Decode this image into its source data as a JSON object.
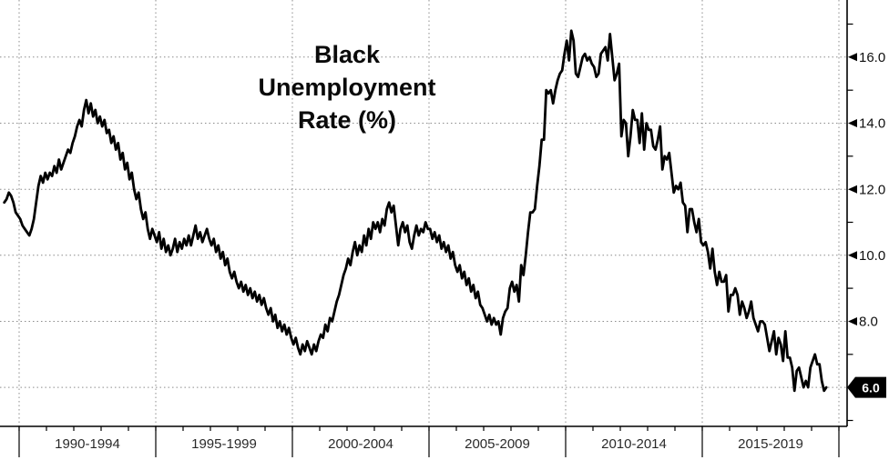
{
  "chart_data": {
    "type": "line",
    "title": "Black\nUnemployment\nRate (%)",
    "series_name": "Black Unemployment Rate (%)",
    "unit": "%",
    "frequency": "monthly",
    "x_start_decimal_year": 1989.4583,
    "xlim": [
      1989.3,
      2020.3
    ],
    "ylim": [
      4.82,
      17.73
    ],
    "grid": "dotted",
    "legend": "none",
    "line_color": "#000000",
    "background_color": "#ffffff",
    "last_value": 6.0,
    "last_value_label": "6.0",
    "badge_bg": "#000000",
    "badge_text_color": "#ffffff",
    "ygrid_values": [
      6,
      8,
      10,
      12,
      14,
      16
    ],
    "yticks_minor": [
      5,
      7,
      9,
      11,
      13,
      15,
      17
    ],
    "yticks_major": [
      {
        "value": 16,
        "label": "16.0"
      },
      {
        "value": 14,
        "label": "14.0"
      },
      {
        "value": 12,
        "label": "12.0"
      },
      {
        "value": 10,
        "label": "10.0"
      },
      {
        "value": 8,
        "label": "8.0"
      }
    ],
    "x_gridline_years": [
      1990,
      1995,
      2000,
      2005,
      2010,
      2015,
      2020
    ],
    "x_year_tick_range": [
      1990,
      2020
    ],
    "x_period_labels": [
      {
        "label": "1990-1994",
        "center_year": 1992.5
      },
      {
        "label": "1995-1999",
        "center_year": 1997.5
      },
      {
        "label": "2000-2004",
        "center_year": 2002.5
      },
      {
        "label": "2005-2009",
        "center_year": 2007.5
      },
      {
        "label": "2010-2014",
        "center_year": 2012.5
      },
      {
        "label": "2015-2019",
        "center_year": 2017.5
      }
    ],
    "values": [
      11.6,
      11.7,
      11.9,
      11.8,
      11.6,
      11.3,
      11.2,
      11.1,
      10.9,
      10.8,
      10.7,
      10.6,
      10.8,
      11.1,
      11.6,
      12.1,
      12.4,
      12.2,
      12.5,
      12.3,
      12.5,
      12.4,
      12.7,
      12.5,
      12.9,
      12.6,
      12.8,
      13.0,
      13.2,
      13.1,
      13.4,
      13.6,
      13.9,
      14.1,
      13.9,
      14.4,
      14.7,
      14.3,
      14.6,
      14.2,
      14.4,
      14.0,
      14.2,
      13.9,
      14.1,
      13.7,
      13.8,
      13.4,
      13.6,
      13.2,
      13.4,
      12.9,
      13.1,
      12.6,
      12.8,
      12.3,
      12.5,
      12.0,
      11.7,
      11.9,
      11.4,
      11.1,
      11.3,
      10.8,
      10.5,
      10.8,
      10.6,
      10.4,
      10.7,
      10.2,
      10.5,
      10.1,
      10.3,
      10.0,
      10.2,
      10.5,
      10.1,
      10.4,
      10.2,
      10.5,
      10.3,
      10.6,
      10.3,
      10.6,
      10.9,
      10.5,
      10.7,
      10.4,
      10.6,
      10.8,
      10.5,
      10.3,
      10.5,
      10.1,
      10.3,
      9.9,
      10.1,
      9.7,
      9.9,
      9.5,
      9.3,
      9.5,
      9.2,
      9.0,
      9.2,
      8.9,
      9.1,
      8.8,
      9.0,
      8.7,
      8.9,
      8.6,
      8.8,
      8.5,
      8.7,
      8.4,
      8.2,
      8.4,
      8.0,
      8.2,
      7.8,
      8.0,
      7.7,
      7.9,
      7.6,
      7.8,
      7.5,
      7.3,
      7.5,
      7.2,
      7.0,
      7.3,
      7.1,
      7.4,
      7.2,
      7.0,
      7.3,
      7.1,
      7.4,
      7.6,
      7.5,
      7.9,
      7.7,
      8.1,
      8.0,
      8.3,
      8.6,
      8.8,
      9.1,
      9.4,
      9.6,
      9.9,
      9.7,
      10.1,
      10.4,
      10.0,
      10.3,
      10.1,
      10.6,
      10.3,
      10.8,
      10.5,
      11.0,
      10.8,
      11.0,
      10.7,
      11.1,
      10.9,
      11.4,
      11.6,
      11.3,
      11.5,
      10.9,
      10.3,
      10.8,
      11.0,
      10.7,
      10.9,
      10.4,
      10.2,
      10.6,
      10.9,
      10.6,
      10.8,
      10.7,
      11.0,
      10.8,
      10.8,
      10.5,
      10.7,
      10.4,
      10.6,
      10.2,
      10.4,
      10.1,
      10.3,
      9.9,
      10.1,
      9.7,
      9.5,
      9.7,
      9.3,
      9.5,
      9.1,
      9.3,
      8.9,
      9.1,
      8.7,
      8.9,
      8.5,
      8.4,
      8.2,
      8.0,
      8.2,
      7.9,
      8.1,
      7.9,
      8.0,
      7.6,
      8.1,
      8.3,
      8.4,
      9.0,
      9.2,
      8.9,
      9.1,
      8.6,
      9.7,
      9.4,
      10.0,
      10.7,
      11.3,
      11.3,
      11.4,
      12.1,
      12.7,
      13.5,
      13.5,
      15.0,
      14.9,
      15.0,
      14.6,
      15.0,
      15.3,
      15.5,
      15.6,
      16.1,
      16.5,
      15.9,
      16.8,
      16.5,
      15.5,
      15.4,
      15.7,
      16.0,
      16.1,
      15.9,
      16.0,
      15.8,
      15.7,
      15.4,
      15.5,
      16.1,
      16.2,
      16.3,
      15.9,
      16.7,
      16.0,
      15.3,
      15.5,
      15.8,
      13.6,
      14.1,
      14.0,
      13.0,
      13.6,
      14.4,
      14.1,
      14.1,
      13.4,
      14.3,
      13.2,
      14.0,
      13.8,
      13.8,
      13.3,
      13.2,
      13.5,
      13.9,
      12.6,
      13.0,
      12.9,
      13.1,
      12.5,
      11.9,
      12.1,
      12.0,
      12.2,
      11.6,
      11.5,
      10.7,
      11.4,
      11.4,
      11.0,
      10.7,
      11.1,
      10.4,
      10.3,
      10.4,
      10.1,
      9.6,
      10.2,
      9.5,
      9.1,
      9.5,
      9.2,
      9.2,
      9.4,
      8.3,
      8.8,
      8.8,
      9.0,
      8.8,
      8.2,
      8.6,
      8.4,
      8.1,
      8.3,
      8.6,
      8.1,
      7.9,
      7.7,
      8.0,
      8.0,
      7.9,
      7.5,
      7.1,
      7.4,
      7.7,
      7.0,
      7.5,
      7.3,
      6.8,
      7.7,
      6.9,
      6.9,
      6.6,
      5.9,
      6.5,
      6.6,
      6.3,
      6.0,
      6.2,
      6.0,
      6.6,
      6.8,
      7.0,
      6.7,
      6.7,
      6.2,
      5.9,
      6.0
    ]
  }
}
